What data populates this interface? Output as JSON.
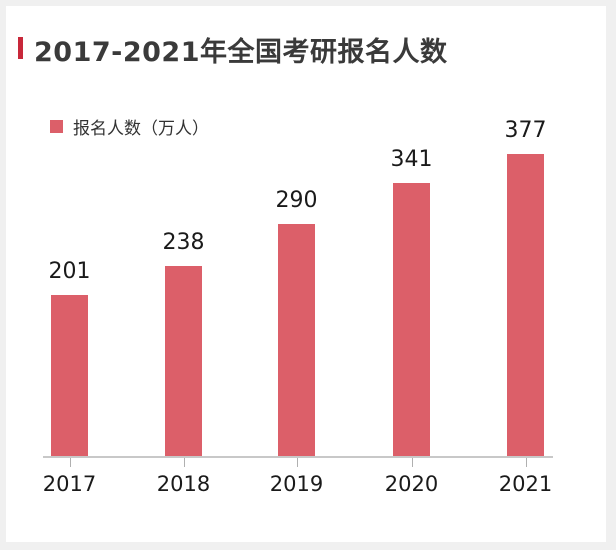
{
  "title": "2017-2021年全国考研报名人数",
  "legend": {
    "label": "报名人数（万人）",
    "color": "#dc5f69"
  },
  "chart_data": {
    "type": "bar",
    "title": "2017-2021年全国考研报名人数",
    "categories": [
      "2017",
      "2018",
      "2019",
      "2020",
      "2021"
    ],
    "series": [
      {
        "name": "报名人数（万人）",
        "values": [
          201,
          238,
          290,
          341,
          377
        ],
        "color": "#dc5f69"
      }
    ],
    "value_labels": [
      "201",
      "238",
      "290",
      "341",
      "377"
    ],
    "xlabel": "",
    "ylabel": "",
    "ylim": [
      0,
      400
    ],
    "grid": false,
    "legend_position": "top-left"
  }
}
